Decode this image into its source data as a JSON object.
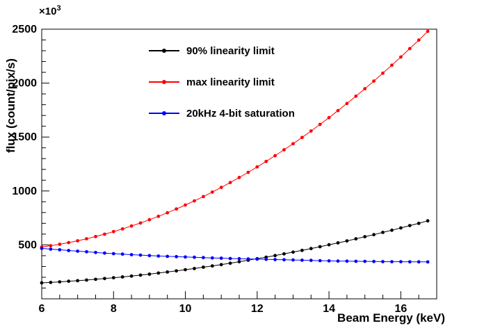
{
  "figure": {
    "background": "#ffffff",
    "y_exponent_base": "×10",
    "y_exponent_power": "3"
  },
  "chart_data": {
    "type": "line",
    "title": "",
    "xlabel": "Beam Energy (keV)",
    "ylabel": "flux (count/pix/s)",
    "y_unit_multiplier": "x10^3",
    "xlim": [
      6,
      17
    ],
    "ylim": [
      0,
      2500
    ],
    "x_major_ticks": [
      6,
      8,
      10,
      12,
      14,
      16
    ],
    "x_minor_step": 0.5,
    "y_major_ticks": [
      500,
      1000,
      1500,
      2000,
      2500
    ],
    "y_minor_step": 100,
    "grid": false,
    "legend_position": "top-left-inside",
    "x": [
      6,
      6.25,
      6.5,
      6.75,
      7,
      7.25,
      7.5,
      7.75,
      8,
      8.25,
      8.5,
      8.75,
      9,
      9.25,
      9.5,
      9.75,
      10,
      10.25,
      10.5,
      10.75,
      11,
      11.25,
      11.5,
      11.75,
      12,
      12.25,
      12.5,
      12.75,
      13,
      13.25,
      13.5,
      13.75,
      14,
      14.25,
      14.5,
      14.75,
      15,
      15.25,
      15.5,
      15.75,
      16,
      16.25,
      16.5,
      16.75
    ],
    "series": [
      {
        "name": "90% linearity limit",
        "color": "#000000",
        "marker": "circle",
        "values": [
          148,
          152,
          157,
          163,
          168,
          174,
          181,
          188,
          195,
          203,
          211,
          220,
          229,
          239,
          249,
          259,
          270,
          281,
          293,
          305,
          317,
          330,
          344,
          358,
          372,
          386,
          401,
          417,
          433,
          449,
          466,
          483,
          501,
          519,
          537,
          556,
          576,
          595,
          616,
          636,
          657,
          679,
          700,
          723
        ]
      },
      {
        "name": "max linearity limit",
        "color": "#ff0000",
        "marker": "circle",
        "values": [
          480,
          492,
          506,
          521,
          538,
          557,
          577,
          599,
          623,
          648,
          675,
          703,
          733,
          765,
          798,
          833,
          870,
          908,
          948,
          990,
          1033,
          1078,
          1125,
          1173,
          1223,
          1274,
          1327,
          1382,
          1438,
          1496,
          1556,
          1617,
          1680,
          1745,
          1811,
          1879,
          1948,
          2019,
          2092,
          2166,
          2242,
          2320,
          2399,
          2480
        ]
      },
      {
        "name": "20kHz 4-bit saturation",
        "color": "#0000ff",
        "marker": "circle",
        "values": [
          468,
          461,
          455,
          448,
          442,
          436,
          430,
          424,
          419,
          414,
          409,
          405,
          401,
          397,
          394,
          391,
          388,
          385,
          382,
          379,
          377,
          374,
          372,
          370,
          368,
          366,
          364,
          362,
          360,
          358,
          356,
          354,
          352,
          350,
          349,
          348,
          347,
          346,
          345,
          344,
          344,
          343,
          343,
          342
        ]
      }
    ]
  }
}
